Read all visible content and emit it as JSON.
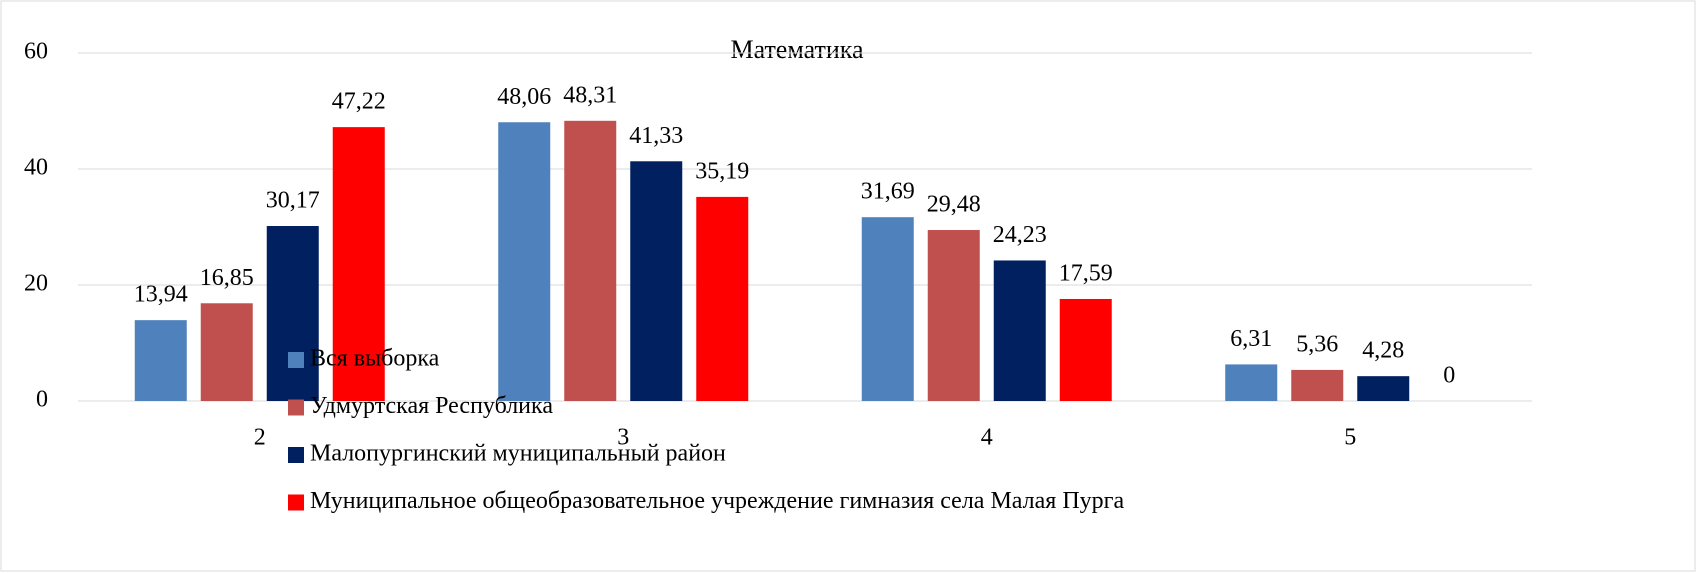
{
  "chart_data": {
    "type": "bar",
    "title": "Математика",
    "categories": [
      "2",
      "3",
      "4",
      "5"
    ],
    "series": [
      {
        "name": "Вся выборка",
        "color": "#4f81bd",
        "values": [
          13.94,
          48.06,
          31.69,
          6.31
        ],
        "value_labels": [
          "13,94",
          "48,06",
          "31,69",
          "6,31"
        ]
      },
      {
        "name": "Удмуртская Республика",
        "color": "#c0504d",
        "values": [
          16.85,
          48.31,
          29.48,
          5.36
        ],
        "value_labels": [
          "16,85",
          "48,31",
          "29,48",
          "5,36"
        ]
      },
      {
        "name": "Малопургинский муниципальный район",
        "color": "#002060",
        "values": [
          30.17,
          41.33,
          24.23,
          4.28
        ],
        "value_labels": [
          "30,17",
          "41,33",
          "24,23",
          "4,28"
        ]
      },
      {
        "name": "Муниципальное общеобразовательное учреждение гимназия села Малая Пурга",
        "color": "#ff0000",
        "values": [
          47.22,
          35.19,
          17.59,
          0
        ],
        "value_labels": [
          "47,22",
          "35,19",
          "17,59",
          "0"
        ]
      }
    ],
    "ylim": [
      0,
      60
    ],
    "yticks": [
      0,
      20,
      40,
      60
    ],
    "grid": true,
    "legend": "bottom-left"
  }
}
